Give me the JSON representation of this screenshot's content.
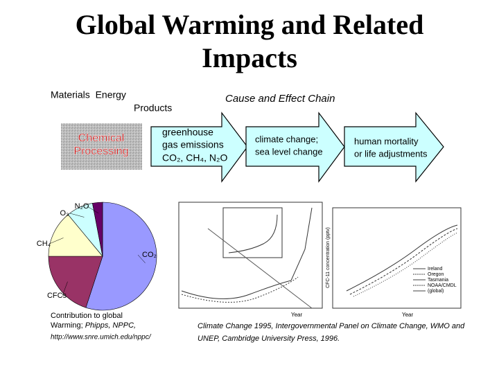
{
  "title": [
    "Global Warming and Related",
    "Impacts"
  ],
  "inputs": "Materials  Energy",
  "products": "Products",
  "chain_title": "Cause and Effect Chain",
  "process": [
    "Chemical",
    "Processing"
  ],
  "chain": [
    {
      "lines": [
        "greenhouse",
        "gas emissions",
        "CO₂, CH₄, N₂O"
      ]
    },
    {
      "lines": [
        "climate change;",
        "sea level change"
      ]
    },
    {
      "lines": [
        "human mortality",
        "or life adjustments"
      ]
    }
  ],
  "pie": {
    "type": "pie",
    "categories": [
      "CO₂",
      "CFCs",
      "CH₄",
      "O₃",
      "N₂O"
    ],
    "values": [
      55,
      20,
      14,
      8,
      3
    ],
    "colors": [
      "#9999ff",
      "#993366",
      "#ffffcc",
      "#ccffff",
      "#660066"
    ]
  },
  "pie_caption": {
    "line1": "Contribution to global",
    "line2": "Warming; ",
    "source": "Phipps, NPPC,",
    "url": "http://www.snre.umich.edu/nppc/"
  },
  "figures": {
    "left_xlabel": "Year",
    "right_xlabel": "Year",
    "right_ylabel": "CFC-11 concentration (pptv)",
    "right_legend": [
      "Ireland",
      "Oregon",
      "Tasmania",
      "NOAA/CMDL",
      "(global)"
    ]
  },
  "citation": [
    "Climate Change 1995, Intergovernmental Panel on Climate Change, WMO and",
    "UNEP, Cambridge University Press, 1996."
  ]
}
